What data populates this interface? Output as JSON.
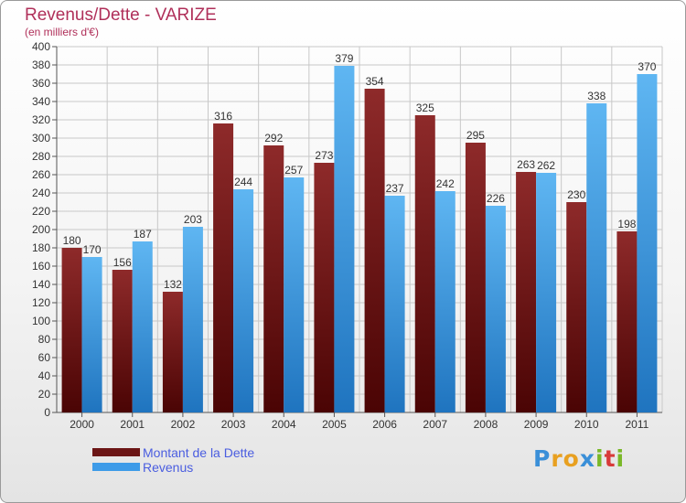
{
  "title": "Revenus/Dette - VARIZE",
  "subtitle": "(en milliers d'€)",
  "logo": {
    "text": "Proxiti",
    "letters": [
      "P",
      "r",
      "o",
      "x",
      "i",
      "t",
      "i"
    ],
    "colors": [
      "#3a8fd8",
      "#e8a020",
      "#e8a020",
      "#3a8fd8",
      "#7ab828",
      "#d83a3a",
      "#7ab828"
    ]
  },
  "legend": [
    {
      "label": "Montant de la Dette",
      "color": "#6b1515"
    },
    {
      "label": "Revenus",
      "color": "#3d9be8"
    }
  ],
  "chart_data": {
    "type": "bar",
    "title": "Revenus/Dette - VARIZE",
    "subtitle": "(en milliers d'€)",
    "categories": [
      "2000",
      "2001",
      "2002",
      "2003",
      "2004",
      "2005",
      "2006",
      "2007",
      "2008",
      "2009",
      "2010",
      "2011"
    ],
    "series": [
      {
        "name": "Montant de la Dette",
        "color": "#6b1515",
        "values": [
          180,
          156,
          132,
          316,
          292,
          273,
          354,
          325,
          295,
          263,
          230,
          198
        ]
      },
      {
        "name": "Revenus",
        "color": "#3d9be8",
        "values": [
          170,
          187,
          203,
          244,
          257,
          379,
          237,
          242,
          226,
          262,
          338,
          370
        ]
      }
    ],
    "ylim": [
      0,
      400
    ],
    "ytick_step": 20,
    "grid": true,
    "legend_position": "bottom-left"
  }
}
